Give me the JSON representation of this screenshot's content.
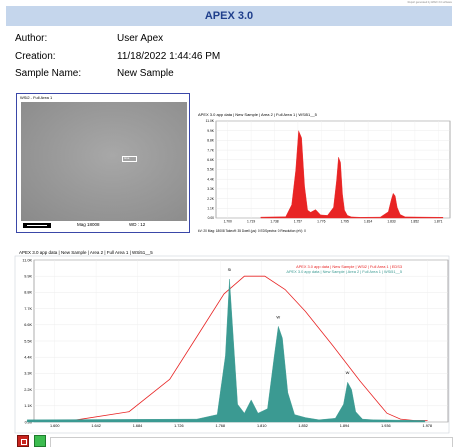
{
  "header": {
    "title": "APEX 3.0",
    "tiny_note": "Report generated by APEX 3.0 software"
  },
  "meta": {
    "author_label": "Author:",
    "author_value": "User Apex",
    "creation_label": "Creation:",
    "creation_value": "11/18/2022 1:44:46 PM",
    "sample_label": "Sample Name:",
    "sample_value": "New Sample"
  },
  "sem_image": {
    "title": "WSi2 - Full Area 1",
    "marker_label": "Area",
    "mag": "Mag 18008",
    "wd": "WD : 12"
  },
  "colors": {
    "banner": "#c5d6ec",
    "red_series": "#e82424",
    "teal_series": "#3b9a92",
    "panel_border": "#3a47a8"
  },
  "chart_data": [
    {
      "type": "area",
      "title": "APEX 3.0 app data | New Sample | Area 2 | Full Area 1 | WSi51__5",
      "info": "kV: 20    Mag: 18008    Takeoff: 35    Dwell (µs): 0    EDSpectra: 0    Resolution (eV): 0",
      "xlim": [
        1.65,
        1.885
      ],
      "ylim": [
        0,
        11000
      ],
      "yticks": [
        "0.00",
        "1.1K",
        "2.2K",
        "3.3K",
        "4.4K",
        "5.5K",
        "6.6K",
        "7.7K",
        "8.8K",
        "9.9K",
        "11.0K"
      ],
      "xticks": [
        "1.700",
        "1.719",
        "1.738",
        "1.757",
        "1.776",
        "1.795",
        "1.814",
        "1.833",
        "1.852",
        "1.871"
      ],
      "series": [
        {
          "color": "#e82424",
          "x": [
            1.695,
            1.72,
            1.726,
            1.73,
            1.733,
            1.736,
            1.739,
            1.742,
            1.745,
            1.75,
            1.755,
            1.762,
            1.768,
            1.771,
            1.773,
            1.775,
            1.777,
            1.779,
            1.782,
            1.786,
            1.795,
            1.815,
            1.823,
            1.826,
            1.828,
            1.83,
            1.832,
            1.835,
            1.84,
            1.878
          ],
          "y": [
            100,
            150,
            1500,
            5400,
            9900,
            9100,
            3600,
            900,
            650,
            950,
            350,
            300,
            1200,
            4200,
            6900,
            6300,
            2700,
            900,
            300,
            120,
            80,
            100,
            700,
            2100,
            2800,
            2500,
            1200,
            400,
            120,
            80
          ]
        }
      ]
    },
    {
      "type": "area",
      "title": "APEX 3.0 app data | New Sample | Area 2 | Full Area 1 | WSi51__5",
      "legend": [
        "APEX 3.0 app data | New Sample | WSi2 | Full Area 1 | EDS3",
        "APEX 3.0 app data | New Sample | Area 2 | Full Area 1 | WSi51__5"
      ],
      "legend_position": "top-right",
      "xlim": [
        1.59,
        1.895
      ],
      "ylim": [
        0,
        11000
      ],
      "yticks": [
        "0.00",
        "1.1K",
        "2.2K",
        "3.3K",
        "4.4K",
        "5.5K",
        "6.6K",
        "7.7K",
        "8.8K",
        "9.9K",
        "11.0K"
      ],
      "xticks": [
        "1.600",
        "1.642",
        "1.684",
        "1.726",
        "1.768",
        "1.810",
        "1.852",
        "1.894",
        "1.936",
        "1.978"
      ],
      "peak_labels": [
        "Si",
        "W",
        "W"
      ],
      "series": [
        {
          "name": "APEX 3.0 app data | New Sample | WSi2 | Full Area 1 | EDS3",
          "color": "#e82424",
          "kind": "line",
          "x": [
            1.585,
            1.62,
            1.66,
            1.69,
            1.71,
            1.73,
            1.745,
            1.76,
            1.775,
            1.79,
            1.81,
            1.83,
            1.85,
            1.86,
            1.87,
            1.88
          ],
          "y": [
            80,
            120,
            700,
            2900,
            5800,
            8700,
            9900,
            9900,
            9000,
            7500,
            5200,
            2800,
            600,
            200,
            100,
            100
          ]
        },
        {
          "name": "APEX 3.0 app data | New Sample | Area 2 | Full Area 1 | WSi51__5",
          "color": "#3b9a92",
          "kind": "area",
          "x": [
            1.585,
            1.71,
            1.725,
            1.731,
            1.734,
            1.737,
            1.74,
            1.745,
            1.75,
            1.755,
            1.762,
            1.767,
            1.77,
            1.773,
            1.777,
            1.782,
            1.79,
            1.8,
            1.812,
            1.818,
            1.821,
            1.824,
            1.827,
            1.832,
            1.84,
            1.878
          ],
          "y": [
            150,
            200,
            500,
            4500,
            9700,
            5500,
            1200,
            600,
            1500,
            600,
            900,
            4500,
            6500,
            5700,
            2000,
            500,
            300,
            150,
            250,
            1200,
            2700,
            2200,
            700,
            200,
            150,
            100
          ]
        }
      ]
    }
  ]
}
